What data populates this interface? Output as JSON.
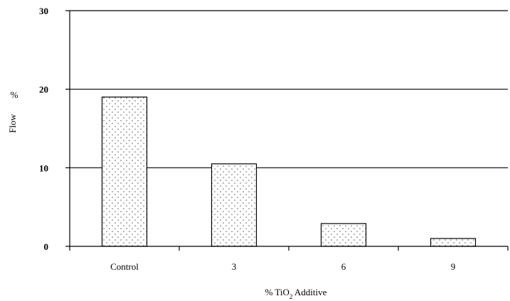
{
  "chart_data": {
    "type": "bar",
    "categories": [
      "Control",
      "3",
      "6",
      "9"
    ],
    "values": [
      19,
      10.5,
      2.9,
      1.0
    ],
    "ylim": [
      0,
      30
    ],
    "yticks": [
      0,
      10,
      20,
      30
    ],
    "ylabel": {
      "text": "Flow",
      "unit": "%"
    },
    "xlabel": {
      "prefix": "% TiO",
      "subscript": "2",
      "suffix": " Additive"
    },
    "grid": true,
    "bar_pattern": "dotted",
    "bar_fill": "#ffffff",
    "bar_dot_color": "#555555",
    "axis_color": "#000000"
  }
}
